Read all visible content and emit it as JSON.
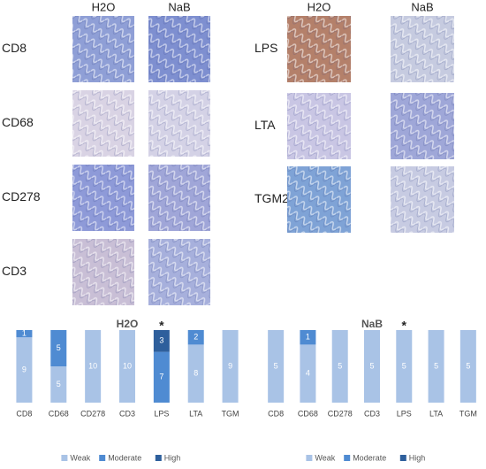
{
  "panels": {
    "left": {
      "columns": [
        "H2O",
        "NaB"
      ],
      "rows": [
        "CD8",
        "CD68",
        "CD278",
        "CD3"
      ]
    },
    "right": {
      "columns": [
        "H2O",
        "NaB"
      ],
      "rows": [
        "LPS",
        "LTA",
        "TGM2"
      ]
    }
  },
  "chart_data": [
    {
      "type": "bar",
      "stacking": "percent",
      "title": "H2O",
      "categories": [
        "CD8",
        "CD68",
        "CD278",
        "CD3",
        "LPS",
        "LTA",
        "TGM"
      ],
      "series": [
        {
          "name": "Weak",
          "color": "#a9c3e6",
          "values": [
            9,
            5,
            10,
            10,
            null,
            8,
            9
          ]
        },
        {
          "name": "Moderate",
          "color": "#4f8bd2",
          "values": [
            1,
            5,
            null,
            null,
            7,
            2,
            null
          ]
        },
        {
          "name": "High",
          "color": "#2e5f9c",
          "values": [
            null,
            null,
            null,
            null,
            3,
            null,
            null
          ]
        }
      ],
      "annotations": [
        {
          "text": "*",
          "category": "LPS"
        }
      ]
    },
    {
      "type": "bar",
      "stacking": "percent",
      "title": "NaB",
      "categories": [
        "CD8",
        "CD68",
        "CD278",
        "CD3",
        "LPS",
        "LTA",
        "TGM"
      ],
      "series": [
        {
          "name": "Weak",
          "color": "#a9c3e6",
          "values": [
            5,
            4,
            5,
            5,
            5,
            5,
            5
          ]
        },
        {
          "name": "Moderate",
          "color": "#4f8bd2",
          "values": [
            null,
            1,
            null,
            null,
            null,
            null,
            null
          ]
        },
        {
          "name": "High",
          "color": "#2e5f9c",
          "values": [
            null,
            null,
            null,
            null,
            null,
            null,
            null
          ]
        }
      ],
      "annotations": [
        {
          "text": "*",
          "category": "LPS"
        }
      ]
    }
  ]
}
